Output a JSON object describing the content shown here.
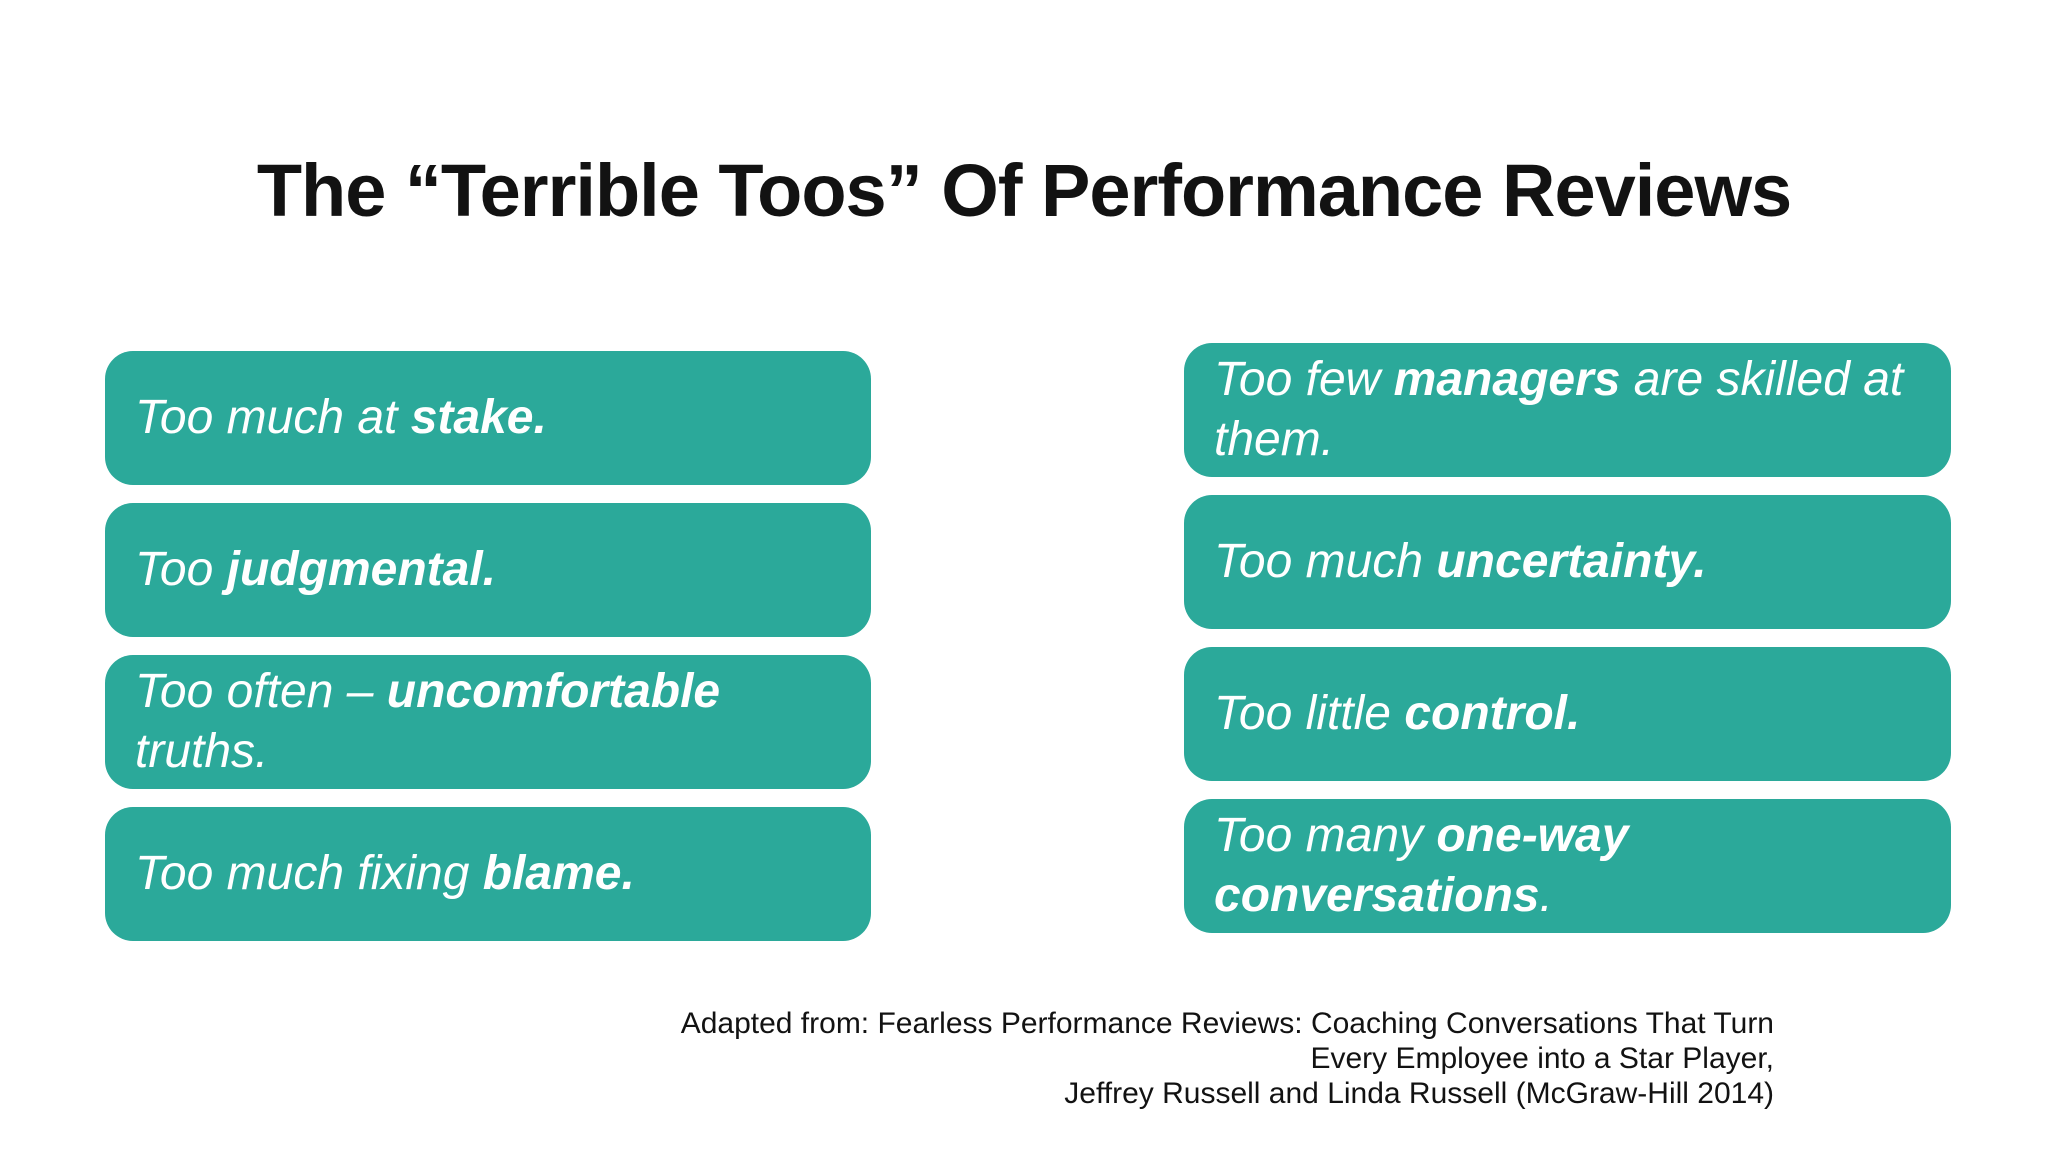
{
  "slide": {
    "title": "The “Terrible Toos” Of Performance Reviews",
    "colors": {
      "background": "#FFFFFF",
      "box_teal": "#2BA99A",
      "box_text": "#FFFFFF",
      "heading_text": "#121212"
    },
    "columns": {
      "left": {
        "boxes": [
          {
            "lines": [
              [
                {
                  "t": "Too much at ",
                  "b": false
                },
                {
                  "t": "stake.",
                  "b": true
                }
              ]
            ]
          },
          {
            "lines": [
              [
                {
                  "t": "Too ",
                  "b": false
                },
                {
                  "t": "judgmental.",
                  "b": true
                }
              ]
            ]
          },
          {
            "lines": [
              [
                {
                  "t": "Too often – ",
                  "b": false
                },
                {
                  "t": "uncomfortable",
                  "b": true
                }
              ],
              [
                {
                  "t": "truths.",
                  "b": false
                }
              ]
            ]
          },
          {
            "lines": [
              [
                {
                  "t": "Too much fixing ",
                  "b": false
                },
                {
                  "t": "blame.",
                  "b": true
                }
              ]
            ]
          }
        ]
      },
      "right": {
        "boxes": [
          {
            "lines": [
              [
                {
                  "t": "Too few ",
                  "b": false
                },
                {
                  "t": "managers",
                  "b": true
                },
                {
                  "t": " are skilled at",
                  "b": false
                }
              ],
              [
                {
                  "t": "them.",
                  "b": false
                }
              ]
            ]
          },
          {
            "lines": [
              [
                {
                  "t": "Too much ",
                  "b": false
                },
                {
                  "t": "uncertainty.",
                  "b": true
                }
              ]
            ]
          },
          {
            "lines": [
              [
                {
                  "t": "Too little ",
                  "b": false
                },
                {
                  "t": "control.",
                  "b": true
                }
              ]
            ]
          },
          {
            "lines": [
              [
                {
                  "t": "Too many ",
                  "b": false
                },
                {
                  "t": "one-way",
                  "b": true
                }
              ],
              [
                {
                  "t": "conversations",
                  "b": true
                },
                {
                  "t": ".",
                  "b": false
                }
              ]
            ]
          }
        ]
      }
    },
    "citation": {
      "lines": [
        "Adapted from: Fearless Performance Reviews: Coaching Conversations That Turn",
        "Every Employee into a Star Player,",
        "Jeffrey Russell and Linda Russell (McGraw-Hill 2014)"
      ]
    }
  }
}
